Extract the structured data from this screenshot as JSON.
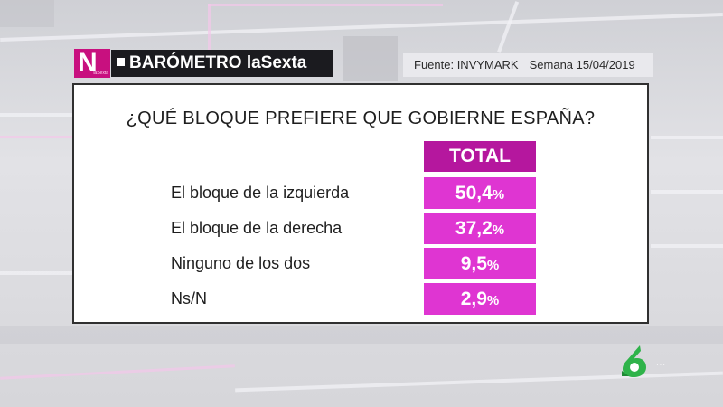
{
  "header": {
    "program_title": "BARÓMETRO laSexta",
    "source": "Fuente:  INVYMARK",
    "week": "Semana 15/04/2019"
  },
  "survey": {
    "question": "¿QUÉ BLOQUE PREFIERE QUE GOBIERNE ESPAÑA?",
    "column_header": "TOTAL",
    "rows": [
      {
        "label": "El bloque de la izquierda",
        "value": "50,4",
        "unit": "%"
      },
      {
        "label": "El bloque de la derecha",
        "value": "37,2",
        "unit": "%"
      },
      {
        "label": "Ninguno de los dos",
        "value": "9,5",
        "unit": "%"
      },
      {
        "label": "Ns/N",
        "value": "2,9",
        "unit": "%"
      }
    ]
  },
  "colors": {
    "header_magenta": "#b5179e",
    "value_magenta": "#df35d2",
    "brand_magenta": "#c8107f",
    "channel_green": "#2fb34a"
  },
  "icons": {
    "program_logo": "lasexta-noticias-logo",
    "channel_logo": "lasexta-6-logo"
  }
}
